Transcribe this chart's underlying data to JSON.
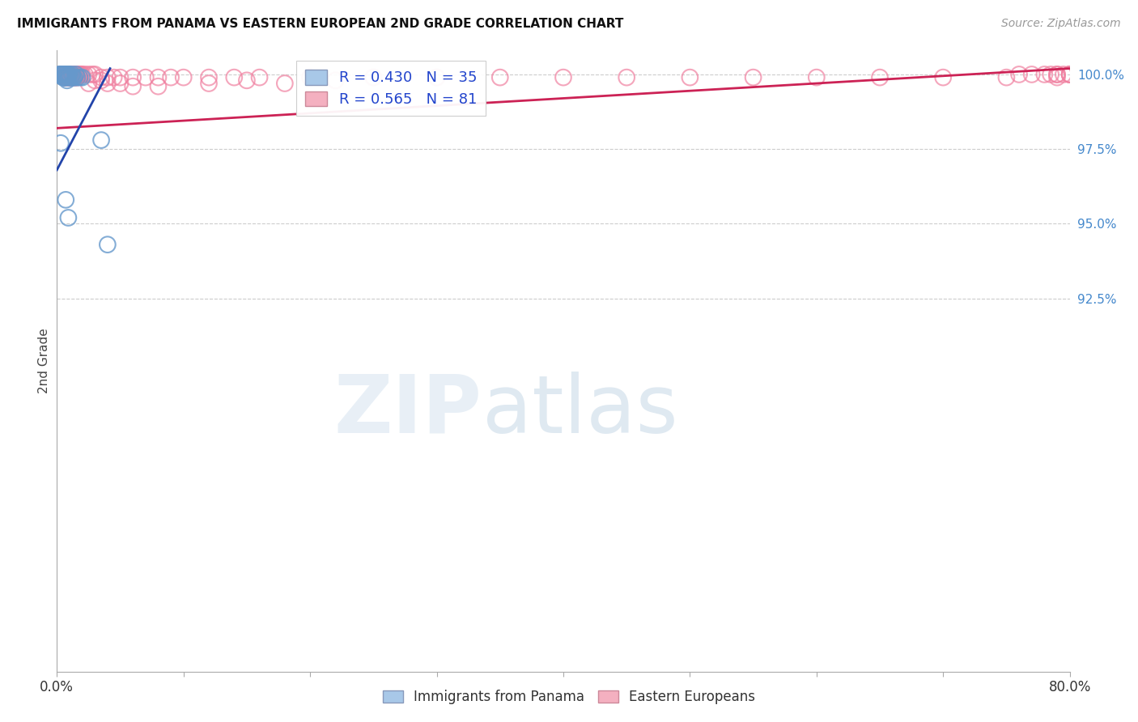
{
  "title": "IMMIGRANTS FROM PANAMA VS EASTERN EUROPEAN 2ND GRADE CORRELATION CHART",
  "source": "Source: ZipAtlas.com",
  "ylabel": "2nd Grade",
  "ylabel_right_labels": [
    "100.0%",
    "97.5%",
    "95.0%",
    "92.5%"
  ],
  "ylabel_right_values": [
    1.0,
    0.975,
    0.95,
    0.925
  ],
  "xlim": [
    0.0,
    0.8
  ],
  "ylim": [
    0.8,
    1.008
  ],
  "legend_blue_label": "R = 0.430   N = 35",
  "legend_pink_label": "R = 0.565   N = 81",
  "legend_blue_color": "#a8c8e8",
  "legend_pink_color": "#f4b0c0",
  "blue_color": "#6699cc",
  "pink_color": "#f080a0",
  "blue_line_color": "#2244aa",
  "pink_line_color": "#cc2255",
  "blue_line_x": [
    0.0,
    0.042
  ],
  "blue_line_y": [
    0.968,
    1.002
  ],
  "pink_line_x": [
    0.0,
    0.8
  ],
  "pink_line_y": [
    0.982,
    1.002
  ],
  "blue_x": [
    0.002,
    0.003,
    0.003,
    0.004,
    0.004,
    0.005,
    0.005,
    0.005,
    0.005,
    0.006,
    0.006,
    0.006,
    0.007,
    0.007,
    0.008,
    0.008,
    0.008,
    0.009,
    0.009,
    0.01,
    0.01,
    0.011,
    0.012,
    0.012,
    0.013,
    0.014,
    0.015,
    0.016,
    0.018,
    0.02,
    0.003,
    0.035,
    0.04,
    0.007,
    0.009
  ],
  "blue_y": [
    1.0,
    1.0,
    1.0,
    1.0,
    1.0,
    1.0,
    1.0,
    0.999,
    0.999,
    1.0,
    0.999,
    0.999,
    1.0,
    0.999,
    1.0,
    0.999,
    0.998,
    1.0,
    0.999,
    1.0,
    0.999,
    0.999,
    1.0,
    0.999,
    0.999,
    0.999,
    1.0,
    0.999,
    0.999,
    0.999,
    0.977,
    0.978,
    0.943,
    0.958,
    0.952
  ],
  "pink_x": [
    0.003,
    0.004,
    0.005,
    0.006,
    0.006,
    0.007,
    0.007,
    0.007,
    0.008,
    0.008,
    0.009,
    0.009,
    0.01,
    0.01,
    0.01,
    0.011,
    0.011,
    0.012,
    0.012,
    0.013,
    0.013,
    0.014,
    0.014,
    0.015,
    0.015,
    0.016,
    0.016,
    0.017,
    0.018,
    0.019,
    0.02,
    0.022,
    0.025,
    0.028,
    0.03,
    0.035,
    0.04,
    0.045,
    0.05,
    0.06,
    0.07,
    0.08,
    0.09,
    0.1,
    0.12,
    0.14,
    0.16,
    0.2,
    0.25,
    0.3,
    0.35,
    0.4,
    0.45,
    0.5,
    0.55,
    0.6,
    0.65,
    0.7,
    0.75,
    0.79,
    0.79,
    0.795,
    0.8,
    0.8,
    0.8,
    0.79,
    0.785,
    0.78,
    0.77,
    0.76,
    0.03,
    0.04,
    0.05,
    0.06,
    0.025,
    0.035,
    0.08,
    0.12,
    0.15,
    0.18,
    0.22
  ],
  "pink_y": [
    1.0,
    1.0,
    1.0,
    1.0,
    0.999,
    1.0,
    0.999,
    0.999,
    1.0,
    0.999,
    1.0,
    0.999,
    1.0,
    0.999,
    0.999,
    1.0,
    0.999,
    1.0,
    0.999,
    1.0,
    0.999,
    1.0,
    0.999,
    1.0,
    0.999,
    1.0,
    0.999,
    1.0,
    1.0,
    1.0,
    1.0,
    1.0,
    1.0,
    1.0,
    1.0,
    0.999,
    0.999,
    0.999,
    0.999,
    0.999,
    0.999,
    0.999,
    0.999,
    0.999,
    0.999,
    0.999,
    0.999,
    0.999,
    0.999,
    0.999,
    0.999,
    0.999,
    0.999,
    0.999,
    0.999,
    0.999,
    0.999,
    0.999,
    0.999,
    0.999,
    1.0,
    1.0,
    1.0,
    1.0,
    1.0,
    1.0,
    1.0,
    1.0,
    1.0,
    1.0,
    0.998,
    0.997,
    0.997,
    0.996,
    0.997,
    0.998,
    0.996,
    0.997,
    0.998,
    0.997,
    0.998
  ]
}
